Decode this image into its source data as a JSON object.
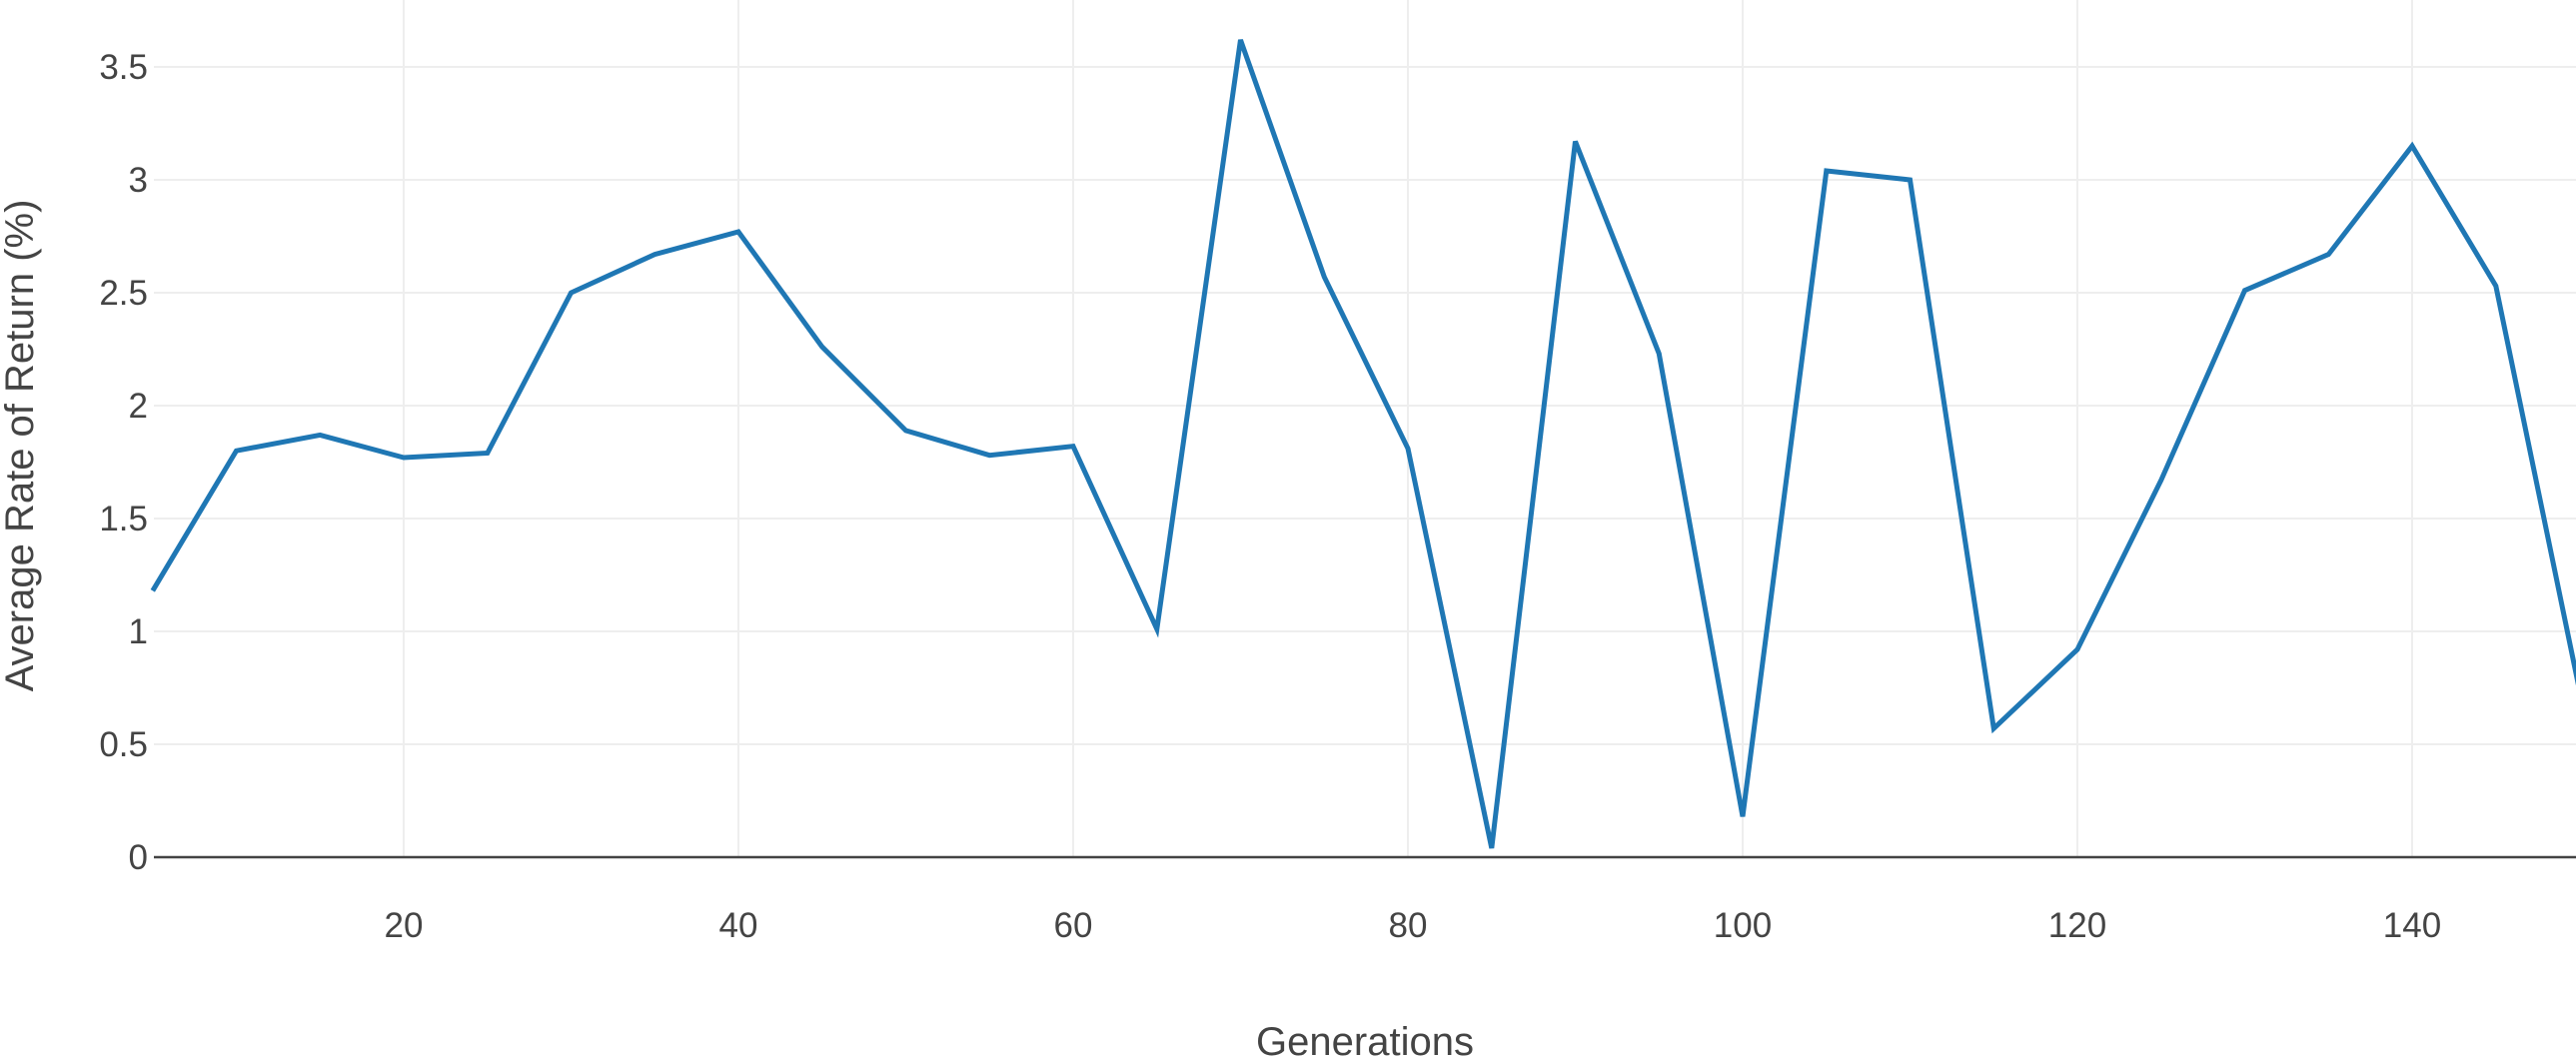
{
  "chart_data": {
    "type": "line",
    "title": "",
    "xlabel": "Generations",
    "ylabel": "Average Rate of Return (%)",
    "xlim": [
      5,
      150
    ],
    "ylim": [
      0,
      3.6
    ],
    "xticks": [
      20,
      40,
      60,
      80,
      100,
      120,
      140
    ],
    "yticks": [
      0,
      0.5,
      1,
      1.5,
      2,
      2.5,
      3,
      3.5
    ],
    "ytick_labels": [
      "0",
      "0.5",
      "1",
      "1.5",
      "2",
      "2.5",
      "3",
      "3.5"
    ],
    "grid": true,
    "legend": "none",
    "colors": {
      "line": "#1f77b4",
      "grid": "#eeeeee",
      "zeroline": "#444444",
      "text": "#444444"
    },
    "series": [
      {
        "x": [
          5,
          10,
          15,
          20,
          25,
          30,
          35,
          40,
          45,
          50,
          55,
          60,
          65,
          70,
          75,
          80,
          85,
          90,
          95,
          100,
          105,
          110,
          115,
          120,
          125,
          130,
          135,
          140,
          145,
          150
        ],
        "y": [
          1.18,
          1.8,
          1.87,
          1.77,
          1.79,
          2.5,
          2.67,
          2.77,
          2.26,
          1.89,
          1.78,
          1.82,
          1.01,
          3.62,
          2.57,
          1.81,
          0.04,
          3.17,
          2.23,
          0.18,
          3.04,
          3.0,
          0.57,
          0.92,
          1.67,
          2.51,
          2.67,
          3.15,
          2.53,
          0.74
        ]
      }
    ]
  }
}
